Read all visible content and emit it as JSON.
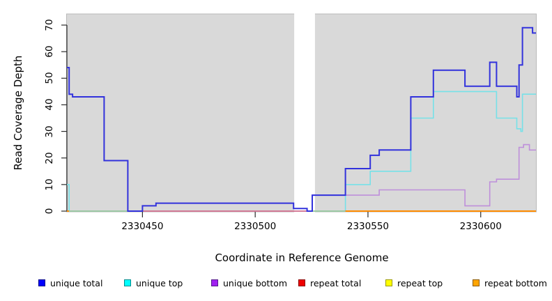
{
  "chart_data": {
    "type": "line",
    "subtype": "step",
    "title": "",
    "xlabel": "Coordinate in Reference Genome",
    "ylabel": "Read Coverage Depth",
    "xlim": [
      2330416.5,
      2330624.5
    ],
    "ylim": [
      0,
      70
    ],
    "x_ticks": [
      "2330450",
      "2330500",
      "2330550",
      "2330600"
    ],
    "x_tick_values": [
      2330450,
      2330500,
      2330550,
      2330600
    ],
    "y_ticks": [
      "0",
      "10",
      "20",
      "30",
      "40",
      "50",
      "60",
      "70"
    ],
    "y_tick_values": [
      0,
      10,
      20,
      30,
      40,
      50,
      60,
      70
    ],
    "grid": false,
    "legend_position": "bottom",
    "background": "#FFFFFF",
    "panel_bg": "#D9D9D9",
    "panel_border": "#B9B9B9",
    "gap_region": {
      "x_start": 2330517.3,
      "x_end": 2330526.5,
      "fill": "#FFFFFF",
      "note": "white band with no panel background"
    },
    "series": [
      {
        "name": "unique total",
        "line_color": "#3232DC",
        "line_width": 2.0,
        "steps": [
          [
            2330416.5,
            54
          ],
          [
            2330417.5,
            44
          ],
          [
            2330419,
            43
          ],
          [
            2330433,
            19
          ],
          [
            2330443.5,
            0
          ],
          [
            2330450,
            2
          ],
          [
            2330456,
            3
          ],
          [
            2330517,
            1
          ],
          [
            2330523,
            0
          ],
          [
            2330525.3,
            6
          ],
          [
            2330540,
            16
          ],
          [
            2330551,
            21
          ],
          [
            2330555,
            23
          ],
          [
            2330569,
            43
          ],
          [
            2330579,
            53
          ],
          [
            2330593,
            47
          ],
          [
            2330604,
            56
          ],
          [
            2330607,
            47
          ],
          [
            2330616,
            43
          ],
          [
            2330617,
            55
          ],
          [
            2330618.5,
            69
          ],
          [
            2330623,
            67
          ]
        ]
      },
      {
        "name": "unique top",
        "line_color": "#76E1E8",
        "line_width": 1.6,
        "steps": [
          [
            2330416.5,
            10
          ],
          [
            2330417.5,
            0
          ],
          [
            2330540,
            10
          ],
          [
            2330551,
            15
          ],
          [
            2330569,
            35
          ],
          [
            2330579,
            45
          ],
          [
            2330607,
            35
          ],
          [
            2330616,
            31
          ],
          [
            2330617.8,
            30
          ],
          [
            2330618.5,
            44
          ]
        ]
      },
      {
        "name": "unique bottom",
        "line_color": "#BE8FDA",
        "line_width": 1.6,
        "steps": [
          [
            2330416.5,
            0
          ],
          [
            2330525.3,
            6
          ],
          [
            2330555,
            8
          ],
          [
            2330593,
            2
          ],
          [
            2330604,
            11
          ],
          [
            2330607,
            12
          ],
          [
            2330617,
            24
          ],
          [
            2330619,
            25
          ],
          [
            2330621.6,
            23
          ]
        ]
      },
      {
        "name": "repeat total",
        "line_color": "#E2607E",
        "line_width": 1.4,
        "steps": [
          [
            2330416.5,
            0
          ]
        ]
      },
      {
        "name": "repeat top",
        "line_color": "#FFFF00",
        "line_width": 1.4,
        "steps": [
          [
            2330416.5,
            0
          ]
        ],
        "note": "flat at 0; overlap with cyan renders as pale green baseline segments"
      },
      {
        "name": "repeat bottom",
        "line_color": "#FF8C00",
        "line_width": 2.0,
        "steps": [
          [
            2330416.5,
            0
          ]
        ],
        "note": "flat at 0; visible as orange baseline segments"
      }
    ],
    "baseline_visible_segments": [
      {
        "color": "#8FD9A2",
        "y": 0,
        "x_start": 2330416.5,
        "x_end": 2330443.5,
        "width": 1.4
      },
      {
        "color": "#8FD9A2",
        "y": 0,
        "x_start": 2330525.3,
        "x_end": 2330540,
        "width": 1.4
      },
      {
        "color": "#FF8C00",
        "y": 0,
        "x_start": 2330416.5,
        "x_end": 2330417.4,
        "width": 2.0
      },
      {
        "color": "#FF8C00",
        "y": 0,
        "x_start": 2330540,
        "x_end": 2330624.5,
        "width": 2.0
      }
    ],
    "legend": [
      {
        "label": "unique total",
        "fill": "#0000FF",
        "border": "#00008B"
      },
      {
        "label": "unique top",
        "fill": "#00FFFF",
        "border": "#008B8B"
      },
      {
        "label": "unique bottom",
        "fill": "#A020F0",
        "border": "#551A8B"
      },
      {
        "label": "repeat total",
        "fill": "#EE0000",
        "border": "#8B0000"
      },
      {
        "label": "repeat top",
        "fill": "#FFFF00",
        "border": "#9A9A00"
      },
      {
        "label": "repeat bottom",
        "fill": "#FFA500",
        "border": "#8B5A00"
      }
    ]
  }
}
